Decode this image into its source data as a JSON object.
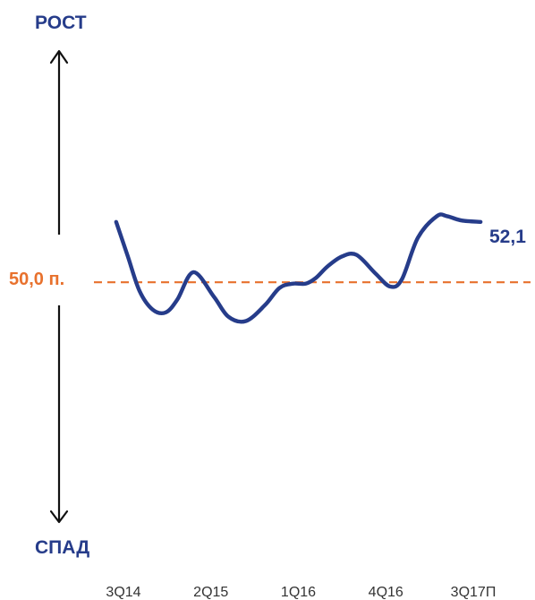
{
  "chart_data": {
    "type": "line",
    "title": "",
    "xlabel": "",
    "ylabel": "",
    "ylim": [
      47.2,
      52.5
    ],
    "grid": false,
    "up_label": "РОСТ",
    "down_label": "СПАД",
    "threshold": {
      "value": 50.0,
      "label": "50,0 п."
    },
    "end_label": "52,1",
    "categories": [
      "3Q14",
      "2Q15",
      "1Q16",
      "4Q16",
      "3Q17П"
    ],
    "category_x": [
      0,
      3,
      6,
      9,
      12
    ],
    "x": [
      -0.25,
      0.15,
      0.55,
      1.0,
      1.45,
      1.85,
      2.4,
      3.1,
      3.6,
      4.2,
      4.85,
      5.35,
      5.8,
      6.25,
      6.6,
      7.0,
      7.5,
      8.0,
      8.65,
      9.15,
      9.55,
      10.1,
      10.75,
      11.1,
      11.6,
      12.25
    ],
    "values": [
      52.1,
      50.9,
      49.7,
      49.05,
      48.95,
      49.4,
      50.35,
      49.5,
      48.8,
      48.65,
      49.2,
      49.8,
      49.95,
      49.95,
      50.15,
      50.55,
      50.9,
      50.95,
      50.3,
      49.85,
      50.1,
      51.55,
      52.3,
      52.3,
      52.15,
      52.1
    ],
    "colors": {
      "line": "#263c8a",
      "threshold": "#e8712d",
      "arrows": "#111111",
      "labels": "#263c8a"
    }
  }
}
